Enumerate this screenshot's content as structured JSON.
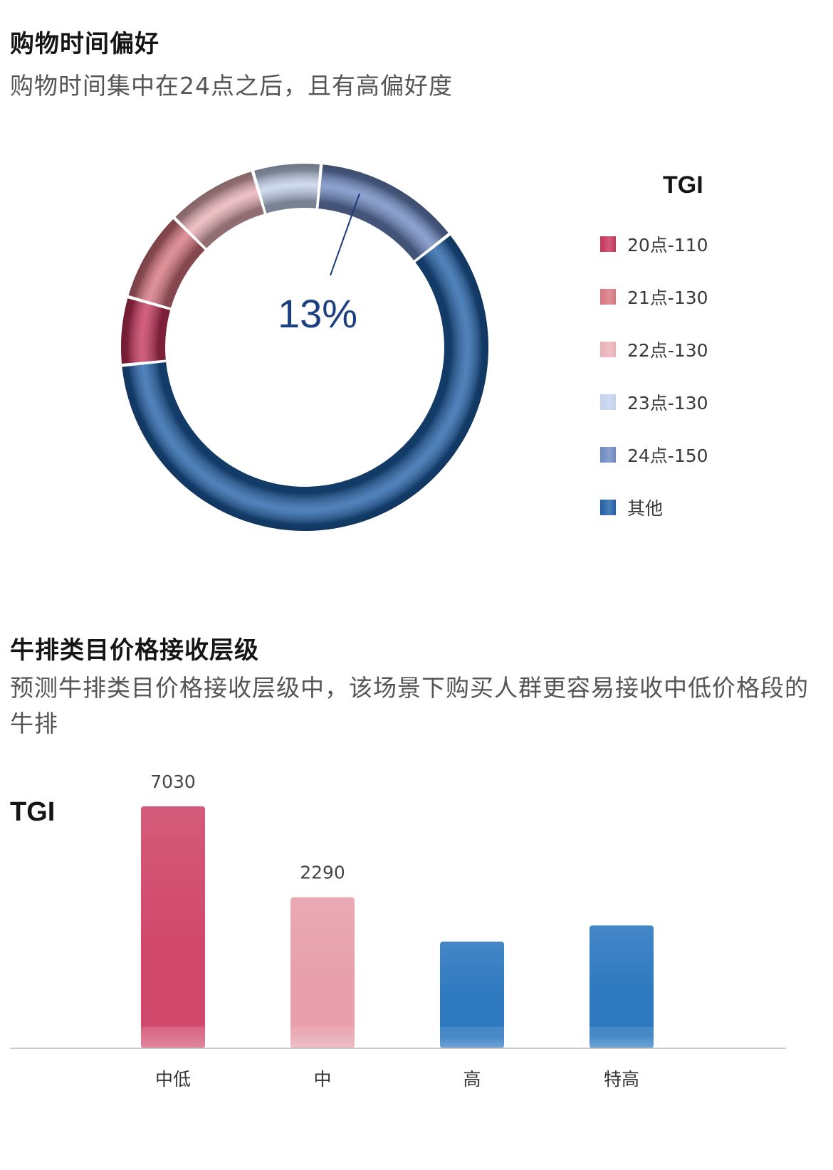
{
  "section1": {
    "title": "购物时间偏好",
    "subtitle": "购物时间集中在24点之后，且有高偏好度"
  },
  "section2": {
    "title": "牛排类目价格接收层级",
    "subtitle": "预测牛排类目价格接收层级中，该场景下购买人群更容易接收中低价格段的牛排"
  },
  "chart_data": [
    {
      "type": "pie",
      "variant": "donut",
      "legend_title": "TGI",
      "legend_position": "right",
      "center_label": "13%",
      "highlighted_segment": "24点-150",
      "segments": [
        {
          "label": "20点-110",
          "value": 6,
          "color": "#c6335a"
        },
        {
          "label": "21点-130",
          "value": 8,
          "color": "#d7737e"
        },
        {
          "label": "22点-130",
          "value": 8,
          "color": "#e9b0b6"
        },
        {
          "label": "23点-130",
          "value": 6,
          "color": "#c3d1ec"
        },
        {
          "label": "24点-150",
          "value": 13,
          "color": "#6c88c2"
        },
        {
          "label": "其他",
          "value": 59,
          "color": "#1f5fa8"
        }
      ]
    },
    {
      "type": "bar",
      "ylabel": "TGI",
      "categories": [
        "中低",
        "中",
        "高",
        "特高"
      ],
      "values": [
        7030,
        2290,
        1000,
        1400
      ],
      "data_labels": [
        "7030",
        "2290",
        "",
        ""
      ],
      "colors": [
        "#d0496c",
        "#e7a0ac",
        "#2e79c0",
        "#2e79c0"
      ],
      "grid": false
    }
  ]
}
